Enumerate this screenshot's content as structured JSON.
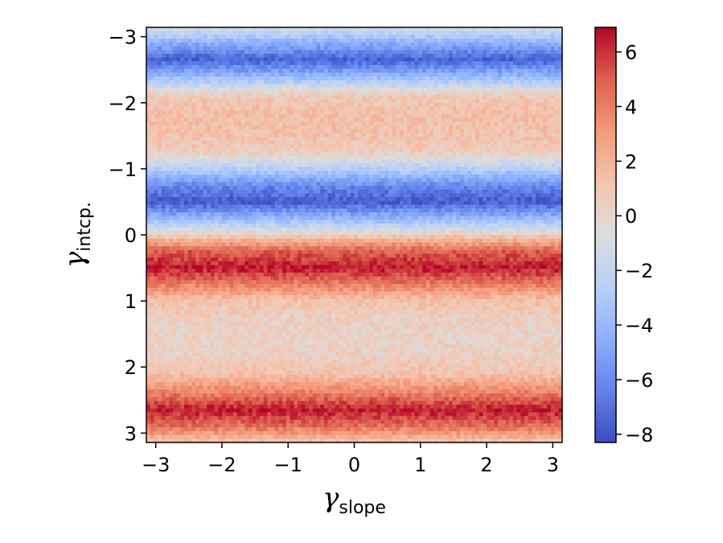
{
  "chart_data": {
    "type": "heatmap",
    "title": "",
    "xlabel": {
      "symbol": "γ",
      "subscript": "slope"
    },
    "ylabel": {
      "symbol": "γ",
      "subscript": "intcp."
    },
    "xlim": [
      -3.1416,
      3.1416
    ],
    "ylim": [
      -3.1416,
      3.1416
    ],
    "y_inverted": true,
    "x_ticks": [
      -3,
      -2,
      -1,
      0,
      1,
      2,
      3
    ],
    "x_tick_labels": [
      "−3",
      "−2",
      "−1",
      "0",
      "1",
      "2",
      "3"
    ],
    "y_ticks": [
      -3,
      -2,
      -1,
      0,
      1,
      2,
      3
    ],
    "y_tick_labels": [
      "−3",
      "−2",
      "−1",
      "0",
      "1",
      "2",
      "3"
    ],
    "grid": false,
    "colormap": "coolwarm",
    "colorbar": {
      "range": [
        -8.3,
        6.9
      ],
      "ticks": [
        -8,
        -6,
        -4,
        -2,
        0,
        2,
        4,
        6
      ],
      "tick_labels": [
        "−8",
        "−6",
        "−4",
        "−2",
        "0",
        "2",
        "4",
        "6"
      ],
      "placement": "right"
    },
    "grid_resolution": 110,
    "row_profile": {
      "description_of_values": "value as a function of γ_intcp (constant along γ_slope)",
      "y": [
        -3.14,
        -2.9,
        -2.65,
        -2.4,
        -2.1,
        -1.8,
        -1.5,
        -1.25,
        -1.0,
        -0.75,
        -0.5,
        -0.25,
        -0.05,
        0.05,
        0.25,
        0.5,
        0.75,
        1.0,
        1.25,
        1.5,
        1.8,
        2.1,
        2.4,
        2.65,
        2.9,
        3.14
      ],
      "value": [
        -1.0,
        -4.5,
        -7.5,
        -4.0,
        0.8,
        1.3,
        1.2,
        0.5,
        -2.5,
        -6.0,
        -7.8,
        -4.0,
        -0.8,
        1.5,
        5.0,
        6.5,
        4.0,
        1.2,
        0.5,
        0.2,
        0.3,
        1.2,
        4.0,
        6.5,
        4.5,
        1.0
      ]
    }
  }
}
